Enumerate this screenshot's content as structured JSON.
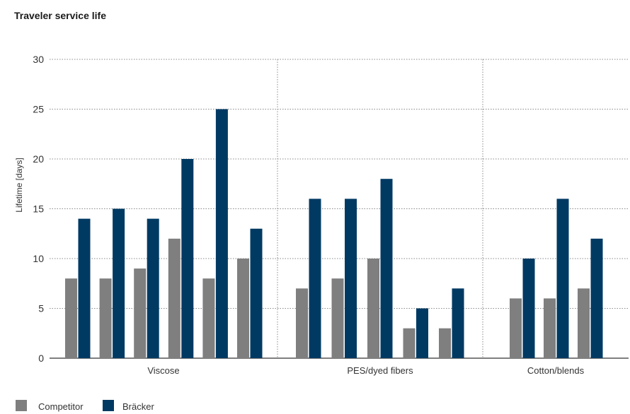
{
  "chart_data": {
    "type": "bar",
    "title": "Traveler service life",
    "ylabel": "Lifetime [days]",
    "ylim": [
      0,
      30
    ],
    "yticks": [
      0,
      5,
      10,
      15,
      20,
      25,
      30
    ],
    "grid": true,
    "legend_placement": "bottom-left",
    "colors": {
      "Competitor": "#7f7f7f",
      "Bräcker": "#003a63"
    },
    "groups": [
      {
        "category": "Viscose",
        "pairs": [
          {
            "Competitor": 8,
            "Bräcker": 14
          },
          {
            "Competitor": 8,
            "Bräcker": 15
          },
          {
            "Competitor": 9,
            "Bräcker": 14
          },
          {
            "Competitor": 12,
            "Bräcker": 20
          },
          {
            "Competitor": 8,
            "Bräcker": 25
          },
          {
            "Competitor": 10,
            "Bräcker": 13
          }
        ]
      },
      {
        "category": "PES/dyed fibers",
        "pairs": [
          {
            "Competitor": 7,
            "Bräcker": 16
          },
          {
            "Competitor": 8,
            "Bräcker": 16
          },
          {
            "Competitor": 10,
            "Bräcker": 18
          },
          {
            "Competitor": 3,
            "Bräcker": 5
          },
          {
            "Competitor": 3,
            "Bräcker": 7
          }
        ]
      },
      {
        "category": "Cotton/blends",
        "pairs": [
          {
            "Competitor": 6,
            "Bräcker": 10
          },
          {
            "Competitor": 6,
            "Bräcker": 16
          },
          {
            "Competitor": 7,
            "Bräcker": 12
          }
        ]
      }
    ],
    "series": [
      {
        "name": "Competitor"
      },
      {
        "name": "Bräcker"
      }
    ]
  }
}
